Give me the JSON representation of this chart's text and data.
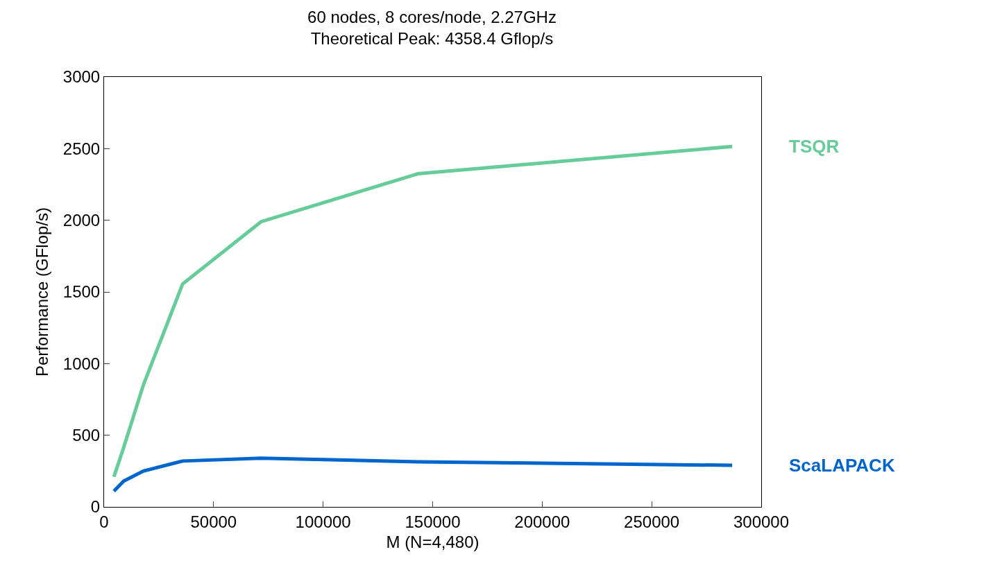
{
  "chart_data": {
    "type": "line",
    "title": "60 nodes, 8 cores/node, 2.27GHz",
    "subtitle": "Theoretical Peak: 4358.4 Gflop/s",
    "xlabel": "M (N=4,480)",
    "ylabel": "Performance (GFlop/s)",
    "x": [
      4480,
      8960,
      17920,
      35840,
      71680,
      143360,
      286720
    ],
    "series": [
      {
        "name": "TSQR",
        "color": "#66cc99",
        "values": [
          210,
          415,
          850,
          1555,
          1990,
          2325,
          2515
        ]
      },
      {
        "name": "ScaLAPACK",
        "color": "#0066cc",
        "values": [
          110,
          180,
          250,
          320,
          340,
          315,
          290
        ]
      }
    ],
    "xlim": [
      0,
      300000
    ],
    "xticks": [
      0,
      50000,
      100000,
      150000,
      200000,
      250000,
      300000
    ],
    "ylim": [
      0,
      3000
    ],
    "yticks": [
      0,
      500,
      1000,
      1500,
      2000,
      2500,
      3000
    ],
    "grid": false,
    "legend": false,
    "marker": "none",
    "line_style": "solid"
  }
}
